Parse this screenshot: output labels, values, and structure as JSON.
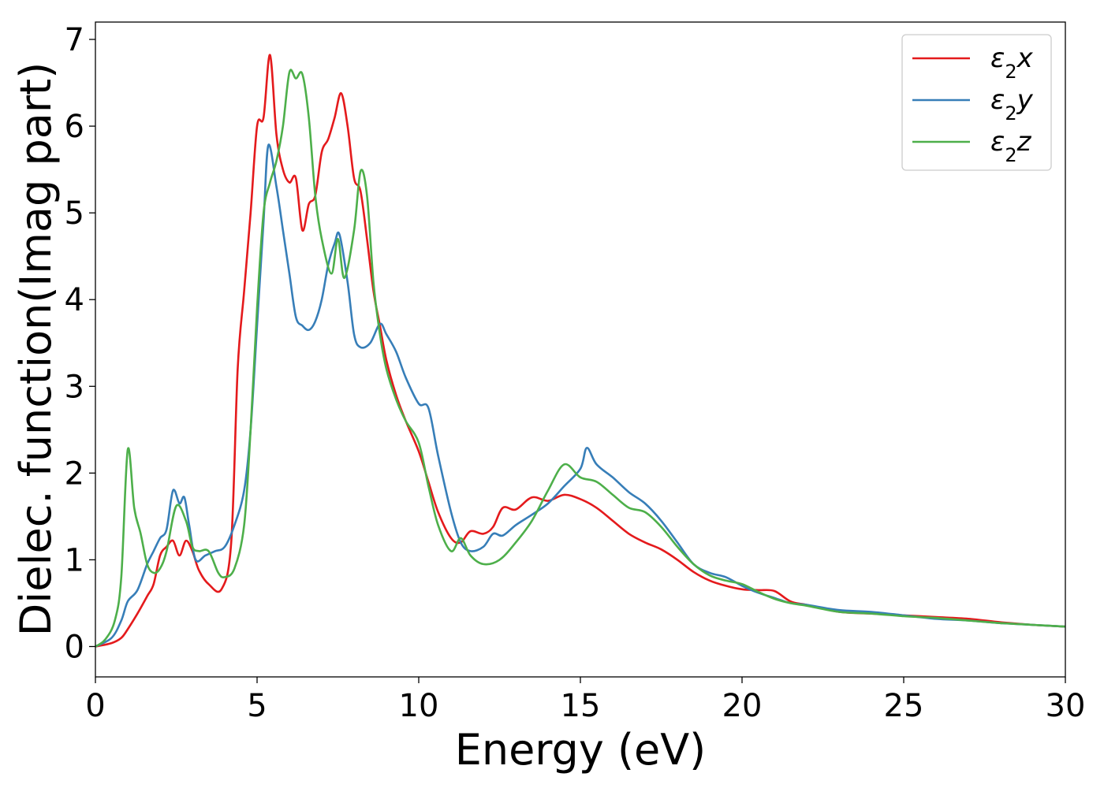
{
  "chart_data": {
    "type": "line",
    "title": "",
    "xlabel": "Energy (eV)",
    "ylabel": "Dielec. function(Imag part)",
    "xlim": [
      0,
      30
    ],
    "ylim": [
      -0.35,
      7.2
    ],
    "xticks": [
      0,
      5,
      10,
      15,
      20,
      25,
      30
    ],
    "xtick_labels": [
      "0",
      "5",
      "10",
      "15",
      "20",
      "25",
      "30"
    ],
    "yticks": [
      0,
      1,
      2,
      3,
      4,
      5,
      6,
      7
    ],
    "ytick_labels": [
      "0",
      "1",
      "2",
      "3",
      "4",
      "5",
      "6",
      "7"
    ],
    "grid": false,
    "legend_position": "top-right",
    "series": [
      {
        "name": "ε2x",
        "legend_symbol": "ε",
        "legend_sub": "2",
        "legend_suffix": "x",
        "color": "#e41a1c",
        "x": [
          0,
          0.5,
          0.8,
          1.0,
          1.3,
          1.6,
          1.8,
          2.0,
          2.2,
          2.4,
          2.6,
          2.8,
          3.0,
          3.2,
          3.5,
          3.9,
          4.2,
          4.4,
          4.6,
          4.8,
          5.0,
          5.2,
          5.4,
          5.6,
          5.8,
          6.0,
          6.2,
          6.4,
          6.6,
          6.8,
          7.0,
          7.2,
          7.4,
          7.6,
          7.8,
          8.0,
          8.2,
          8.4,
          8.6,
          8.8,
          9.0,
          9.3,
          9.6,
          10.0,
          10.3,
          10.6,
          11.0,
          11.3,
          11.6,
          12.0,
          12.3,
          12.6,
          13.0,
          13.5,
          14.0,
          14.5,
          15.0,
          15.5,
          16.0,
          16.5,
          17.0,
          17.5,
          18.0,
          18.5,
          19.0,
          19.5,
          20.0,
          20.5,
          21.0,
          21.5,
          22.0,
          23.0,
          24.0,
          25.0,
          26.0,
          27.0,
          28.0,
          29.0,
          30.0
        ],
        "values": [
          0,
          0.04,
          0.1,
          0.2,
          0.38,
          0.58,
          0.72,
          1.05,
          1.15,
          1.22,
          1.05,
          1.22,
          1.1,
          0.88,
          0.72,
          0.66,
          1.2,
          3.2,
          4.1,
          5.0,
          6.0,
          6.1,
          6.82,
          5.9,
          5.5,
          5.35,
          5.4,
          4.8,
          5.1,
          5.2,
          5.7,
          5.85,
          6.1,
          6.38,
          6.0,
          5.4,
          5.25,
          4.7,
          4.1,
          3.7,
          3.3,
          2.9,
          2.6,
          2.25,
          1.9,
          1.55,
          1.25,
          1.2,
          1.33,
          1.3,
          1.38,
          1.6,
          1.58,
          1.72,
          1.68,
          1.75,
          1.7,
          1.6,
          1.45,
          1.3,
          1.2,
          1.12,
          1.0,
          0.86,
          0.76,
          0.7,
          0.66,
          0.65,
          0.64,
          0.52,
          0.48,
          0.4,
          0.38,
          0.36,
          0.34,
          0.32,
          0.28,
          0.25,
          0.23
        ]
      },
      {
        "name": "ε2y",
        "legend_symbol": "ε",
        "legend_sub": "2",
        "legend_suffix": "y",
        "color": "#377eb8",
        "x": [
          0,
          0.5,
          0.8,
          1.0,
          1.3,
          1.6,
          1.8,
          2.0,
          2.2,
          2.4,
          2.6,
          2.75,
          2.9,
          3.1,
          3.4,
          3.7,
          4.0,
          4.3,
          4.6,
          4.8,
          5.0,
          5.2,
          5.35,
          5.6,
          5.8,
          6.0,
          6.2,
          6.4,
          6.6,
          6.8,
          7.0,
          7.2,
          7.4,
          7.55,
          7.8,
          8.0,
          8.2,
          8.5,
          8.8,
          9.0,
          9.3,
          9.6,
          10.0,
          10.3,
          10.6,
          11.0,
          11.3,
          11.6,
          12.0,
          12.3,
          12.6,
          13.0,
          13.5,
          14.0,
          14.5,
          15.0,
          15.2,
          15.5,
          16.0,
          16.5,
          17.0,
          17.5,
          18.0,
          18.5,
          19.0,
          19.5,
          20.0,
          20.5,
          21.0,
          21.5,
          22.0,
          23.0,
          24.0,
          25.0,
          26.0,
          27.0,
          28.0,
          29.0,
          30.0
        ],
        "values": [
          0,
          0.1,
          0.3,
          0.52,
          0.65,
          0.95,
          1.1,
          1.25,
          1.35,
          1.8,
          1.65,
          1.72,
          1.4,
          1.0,
          1.05,
          1.1,
          1.15,
          1.4,
          1.8,
          2.5,
          3.7,
          4.9,
          5.78,
          5.3,
          4.8,
          4.3,
          3.8,
          3.7,
          3.65,
          3.75,
          4.0,
          4.4,
          4.65,
          4.75,
          4.2,
          3.6,
          3.45,
          3.5,
          3.72,
          3.6,
          3.4,
          3.1,
          2.8,
          2.75,
          2.2,
          1.55,
          1.2,
          1.1,
          1.15,
          1.3,
          1.28,
          1.4,
          1.52,
          1.65,
          1.85,
          2.05,
          2.29,
          2.1,
          1.95,
          1.78,
          1.65,
          1.45,
          1.2,
          0.95,
          0.85,
          0.8,
          0.7,
          0.62,
          0.56,
          0.5,
          0.48,
          0.42,
          0.4,
          0.36,
          0.32,
          0.3,
          0.27,
          0.25,
          0.23
        ]
      },
      {
        "name": "ε2z",
        "legend_symbol": "ε",
        "legend_sub": "2",
        "legend_suffix": "z",
        "color": "#4daf4a",
        "x": [
          0,
          0.3,
          0.6,
          0.8,
          1.0,
          1.2,
          1.4,
          1.6,
          1.8,
          2.0,
          2.2,
          2.5,
          2.8,
          3.0,
          3.2,
          3.5,
          3.8,
          4.0,
          4.3,
          4.6,
          4.8,
          5.0,
          5.2,
          5.4,
          5.6,
          5.8,
          6.0,
          6.2,
          6.4,
          6.6,
          6.8,
          7.0,
          7.3,
          7.5,
          7.7,
          8.0,
          8.2,
          8.4,
          8.6,
          8.8,
          9.0,
          9.3,
          9.6,
          10.0,
          10.3,
          10.6,
          11.0,
          11.3,
          11.6,
          12.0,
          12.5,
          13.0,
          13.5,
          14.0,
          14.5,
          15.0,
          15.5,
          16.0,
          16.5,
          17.0,
          17.5,
          18.0,
          18.5,
          19.0,
          19.5,
          20.0,
          20.5,
          21.0,
          21.5,
          22.0,
          23.0,
          24.0,
          25.0,
          26.0,
          27.0,
          28.0,
          29.0,
          30.0
        ],
        "values": [
          0,
          0.08,
          0.3,
          0.8,
          2.27,
          1.6,
          1.3,
          0.95,
          0.85,
          0.9,
          1.1,
          1.62,
          1.45,
          1.15,
          1.1,
          1.1,
          0.85,
          0.8,
          0.9,
          1.4,
          2.5,
          3.9,
          5.0,
          5.35,
          5.6,
          6.0,
          6.62,
          6.55,
          6.6,
          6.1,
          5.2,
          4.7,
          4.3,
          4.7,
          4.25,
          4.8,
          5.48,
          5.2,
          4.2,
          3.6,
          3.2,
          2.85,
          2.6,
          2.35,
          1.85,
          1.4,
          1.1,
          1.25,
          1.05,
          0.95,
          1.0,
          1.2,
          1.45,
          1.8,
          2.1,
          1.95,
          1.9,
          1.75,
          1.6,
          1.55,
          1.38,
          1.15,
          0.95,
          0.82,
          0.76,
          0.72,
          0.63,
          0.55,
          0.5,
          0.47,
          0.4,
          0.38,
          0.35,
          0.33,
          0.3,
          0.27,
          0.25,
          0.23
        ]
      }
    ]
  }
}
